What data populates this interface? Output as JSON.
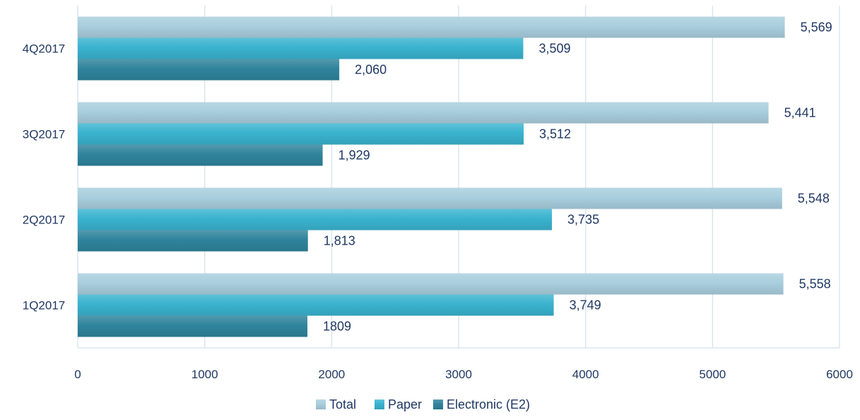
{
  "chart_data": {
    "type": "bar",
    "orientation": "horizontal",
    "title": "",
    "xlabel": "",
    "ylabel": "",
    "categories": [
      "1Q2017",
      "2Q2017",
      "3Q2017",
      "4Q2017"
    ],
    "series": [
      {
        "name": "Total",
        "values": [
          5558,
          5548,
          5441,
          5569
        ],
        "labels": [
          "5,558",
          "5,548",
          "5,441",
          "5,569"
        ],
        "color": "#a9cedd"
      },
      {
        "name": "Paper",
        "values": [
          3749,
          3735,
          3512,
          3509
        ],
        "labels": [
          "3,749",
          "3,735",
          "3,512",
          "3,509"
        ],
        "color": "#3ab3cf"
      },
      {
        "name": "Electronic (E2)",
        "values": [
          1809,
          1813,
          1929,
          2060
        ],
        "labels": [
          "1809",
          "1,813",
          "1,929",
          "2,060"
        ],
        "color": "#2f849c"
      }
    ],
    "xlim": [
      0,
      6000
    ],
    "xticks": [
      0,
      1000,
      2000,
      3000,
      4000,
      5000,
      6000
    ],
    "xtick_labels": [
      "0",
      "1000",
      "2000",
      "3000",
      "4000",
      "5000",
      "6000"
    ],
    "grid": "vertical",
    "legend_position": "bottom"
  }
}
